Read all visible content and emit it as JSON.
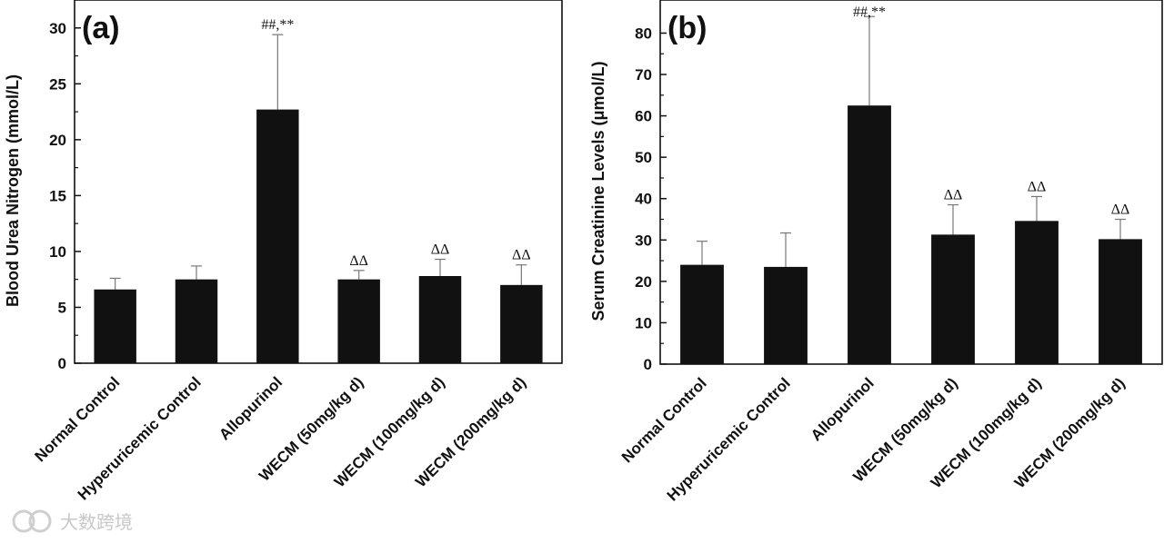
{
  "chart_data": [
    {
      "type": "bar",
      "panel_label": "(a)",
      "title": "",
      "xlabel": "",
      "ylabel": "Blood Urea Nitrogen (mmol/L)",
      "ylim": [
        0,
        32.5
      ],
      "yticks": [
        0,
        5,
        10,
        15,
        20,
        25,
        30
      ],
      "categories": [
        "Normal Control",
        "Hyperuricemic Control",
        "Allopurinol",
        "WECM (50mg/kg d)",
        "WECM (100mg/kg d)",
        "WECM (200mg/kg d)"
      ],
      "values": [
        6.6,
        7.5,
        22.7,
        7.5,
        7.8,
        7.0
      ],
      "errors": [
        1.0,
        1.2,
        6.7,
        0.8,
        1.5,
        1.8
      ],
      "annotations": [
        "",
        "",
        "##,**",
        "ΔΔ",
        "ΔΔ",
        "ΔΔ"
      ],
      "grid": false
    },
    {
      "type": "bar",
      "panel_label": "(b)",
      "title": "",
      "xlabel": "",
      "ylabel": "Serum Creatinine Levels (μmol/L)",
      "ylim": [
        0,
        88
      ],
      "yticks": [
        0,
        10,
        20,
        30,
        40,
        50,
        60,
        70,
        80
      ],
      "categories": [
        "Normal Control",
        "Hyperuricemic Control",
        "Allopurinol",
        "WECM (50mg/kg d)",
        "WECM (100mg/kg d)",
        "WECM (200mg/kg d)"
      ],
      "values": [
        24.0,
        23.5,
        62.5,
        31.3,
        34.6,
        30.2
      ],
      "errors": [
        5.7,
        8.2,
        21.5,
        7.2,
        5.9,
        4.8
      ],
      "annotations": [
        "",
        "",
        "##,**",
        "ΔΔ",
        "ΔΔ",
        "ΔΔ"
      ],
      "grid": false
    }
  ],
  "watermark": "大数跨境"
}
